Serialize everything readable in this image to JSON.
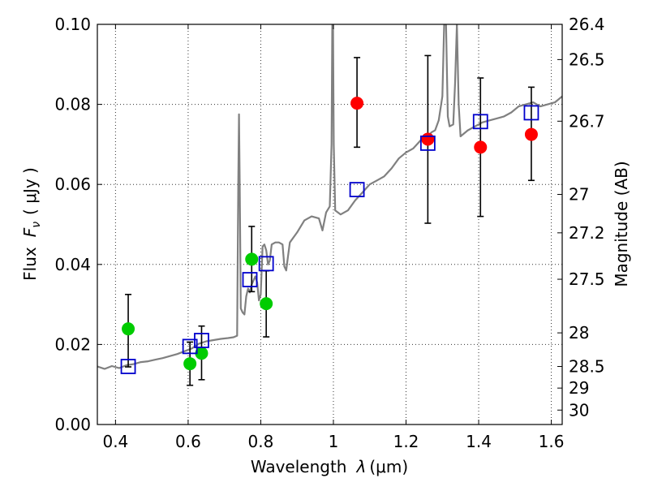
{
  "chart_data": {
    "type": "scatter",
    "xlabel": "Wavelength λ (μm)",
    "ylabel": "Flux F_ν ( μJy )",
    "ylabel_parts": {
      "pre": "Flux",
      "math": "F",
      "sub": "ν",
      "post": "( μJy )"
    },
    "xlabel_parts": {
      "pre": "Wavelength",
      "math": "λ",
      "post": "(μm)"
    },
    "ylabel_right": "Magnitude (AB)",
    "xlim": [
      0.35,
      1.63
    ],
    "ylim": [
      0.0,
      0.1
    ],
    "grid": true,
    "xticks": [
      {
        "v": 0.4,
        "label": "0.4"
      },
      {
        "v": 0.6,
        "label": "0.6"
      },
      {
        "v": 0.8,
        "label": "0.8"
      },
      {
        "v": 1.0,
        "label": "1"
      },
      {
        "v": 1.2,
        "label": "1.2"
      },
      {
        "v": 1.4,
        "label": "1.4"
      },
      {
        "v": 1.6,
        "label": "1.6"
      }
    ],
    "yticks": [
      {
        "v": 0.0,
        "label": "0.00"
      },
      {
        "v": 0.02,
        "label": "0.02"
      },
      {
        "v": 0.04,
        "label": "0.04"
      },
      {
        "v": 0.06,
        "label": "0.06"
      },
      {
        "v": 0.08,
        "label": "0.08"
      },
      {
        "v": 0.1,
        "label": "0.10"
      }
    ],
    "right_ticks": [
      {
        "flux": 0.1,
        "label": "26.4"
      },
      {
        "flux": 0.0912,
        "label": "26.5"
      },
      {
        "flux": 0.0758,
        "label": "26.7"
      },
      {
        "flux": 0.0575,
        "label": "27"
      },
      {
        "flux": 0.0479,
        "label": "27.2"
      },
      {
        "flux": 0.0363,
        "label": "27.5"
      },
      {
        "flux": 0.0229,
        "label": "28"
      },
      {
        "flux": 0.0145,
        "label": "28.5"
      },
      {
        "flux": 0.0091,
        "label": "29"
      },
      {
        "flux": 0.0036,
        "label": "30"
      }
    ],
    "series": [
      {
        "kind": "line",
        "color": "#808080",
        "points": [
          [
            0.35,
            0.0145
          ],
          [
            0.37,
            0.0139
          ],
          [
            0.39,
            0.0146
          ],
          [
            0.41,
            0.0141
          ],
          [
            0.43,
            0.0148
          ],
          [
            0.45,
            0.0151
          ],
          [
            0.47,
            0.0156
          ],
          [
            0.49,
            0.0158
          ],
          [
            0.51,
            0.0162
          ],
          [
            0.53,
            0.0166
          ],
          [
            0.55,
            0.0171
          ],
          [
            0.57,
            0.0176
          ],
          [
            0.59,
            0.0183
          ],
          [
            0.61,
            0.019
          ],
          [
            0.63,
            0.0202
          ],
          [
            0.65,
            0.0208
          ],
          [
            0.67,
            0.0211
          ],
          [
            0.69,
            0.0214
          ],
          [
            0.71,
            0.0216
          ],
          [
            0.725,
            0.0218
          ],
          [
            0.735,
            0.0222
          ],
          [
            0.738,
            0.06
          ],
          [
            0.74,
            0.0775
          ],
          [
            0.742,
            0.06
          ],
          [
            0.745,
            0.029
          ],
          [
            0.75,
            0.028
          ],
          [
            0.755,
            0.0275
          ],
          [
            0.76,
            0.032
          ],
          [
            0.765,
            0.034
          ],
          [
            0.77,
            0.033
          ],
          [
            0.775,
            0.035
          ],
          [
            0.785,
            0.037
          ],
          [
            0.79,
            0.0355
          ],
          [
            0.795,
            0.031
          ],
          [
            0.8,
            0.0325
          ],
          [
            0.805,
            0.0445
          ],
          [
            0.81,
            0.045
          ],
          [
            0.815,
            0.0435
          ],
          [
            0.82,
            0.04
          ],
          [
            0.825,
            0.041
          ],
          [
            0.83,
            0.045
          ],
          [
            0.84,
            0.0455
          ],
          [
            0.85,
            0.0455
          ],
          [
            0.86,
            0.045
          ],
          [
            0.865,
            0.0395
          ],
          [
            0.87,
            0.0385
          ],
          [
            0.875,
            0.042
          ],
          [
            0.88,
            0.0455
          ],
          [
            0.9,
            0.048
          ],
          [
            0.92,
            0.051
          ],
          [
            0.94,
            0.052
          ],
          [
            0.96,
            0.0515
          ],
          [
            0.97,
            0.0485
          ],
          [
            0.98,
            0.053
          ],
          [
            0.99,
            0.0545
          ],
          [
            0.995,
            0.07
          ],
          [
            0.997,
            0.1
          ],
          [
            0.999,
            0.1
          ],
          [
            1.001,
            0.07
          ],
          [
            1.005,
            0.0535
          ],
          [
            1.02,
            0.0525
          ],
          [
            1.04,
            0.0535
          ],
          [
            1.06,
            0.056
          ],
          [
            1.08,
            0.058
          ],
          [
            1.1,
            0.06
          ],
          [
            1.12,
            0.061
          ],
          [
            1.14,
            0.062
          ],
          [
            1.16,
            0.064
          ],
          [
            1.18,
            0.0665
          ],
          [
            1.2,
            0.068
          ],
          [
            1.22,
            0.069
          ],
          [
            1.24,
            0.071
          ],
          [
            1.26,
            0.072
          ],
          [
            1.27,
            0.073
          ],
          [
            1.28,
            0.0735
          ],
          [
            1.29,
            0.076
          ],
          [
            1.3,
            0.082
          ],
          [
            1.305,
            0.1
          ],
          [
            1.31,
            0.1
          ],
          [
            1.315,
            0.077
          ],
          [
            1.32,
            0.0745
          ],
          [
            1.33,
            0.075
          ],
          [
            1.335,
            0.085
          ],
          [
            1.34,
            0.1
          ],
          [
            1.345,
            0.08
          ],
          [
            1.35,
            0.072
          ],
          [
            1.37,
            0.0735
          ],
          [
            1.39,
            0.0745
          ],
          [
            1.41,
            0.0755
          ],
          [
            1.43,
            0.076
          ],
          [
            1.45,
            0.0765
          ],
          [
            1.47,
            0.077
          ],
          [
            1.49,
            0.078
          ],
          [
            1.51,
            0.0795
          ],
          [
            1.53,
            0.08
          ],
          [
            1.55,
            0.0805
          ],
          [
            1.57,
            0.0795
          ],
          [
            1.59,
            0.08
          ],
          [
            1.61,
            0.0805
          ],
          [
            1.63,
            0.082
          ]
        ]
      },
      {
        "kind": "points",
        "marker": "circle",
        "color": "#ff0000",
        "stroke": "#ff0000",
        "points": [
          {
            "x": 1.065,
            "y": 0.0803,
            "lo": 0.0693,
            "hi": 0.0917
          },
          {
            "x": 1.26,
            "y": 0.0713,
            "lo": 0.0503,
            "hi": 0.0922
          },
          {
            "x": 1.405,
            "y": 0.0693,
            "lo": 0.052,
            "hi": 0.0866
          },
          {
            "x": 1.545,
            "y": 0.0725,
            "lo": 0.061,
            "hi": 0.0843
          }
        ]
      },
      {
        "kind": "points",
        "marker": "circle",
        "color": "#00cc00",
        "stroke": "#00cc00",
        "points": [
          {
            "x": 0.435,
            "y": 0.0239,
            "lo": 0.0144,
            "hi": 0.0325
          },
          {
            "x": 0.605,
            "y": 0.0152,
            "lo": 0.0098,
            "hi": 0.0206
          },
          {
            "x": 0.637,
            "y": 0.0178,
            "lo": 0.0112,
            "hi": 0.0246
          },
          {
            "x": 0.775,
            "y": 0.0413,
            "lo": 0.0332,
            "hi": 0.0495
          },
          {
            "x": 0.815,
            "y": 0.0302,
            "lo": 0.0219,
            "hi": 0.0384
          }
        ]
      },
      {
        "kind": "points",
        "marker": "square",
        "color": "none",
        "stroke": "#0000cc",
        "points": [
          {
            "x": 0.435,
            "y": 0.0145
          },
          {
            "x": 0.605,
            "y": 0.0195
          },
          {
            "x": 0.637,
            "y": 0.021
          },
          {
            "x": 0.77,
            "y": 0.0362
          },
          {
            "x": 0.815,
            "y": 0.0402
          },
          {
            "x": 1.065,
            "y": 0.0587
          },
          {
            "x": 1.26,
            "y": 0.0703
          },
          {
            "x": 1.405,
            "y": 0.0757
          },
          {
            "x": 1.545,
            "y": 0.0779
          }
        ]
      }
    ]
  }
}
